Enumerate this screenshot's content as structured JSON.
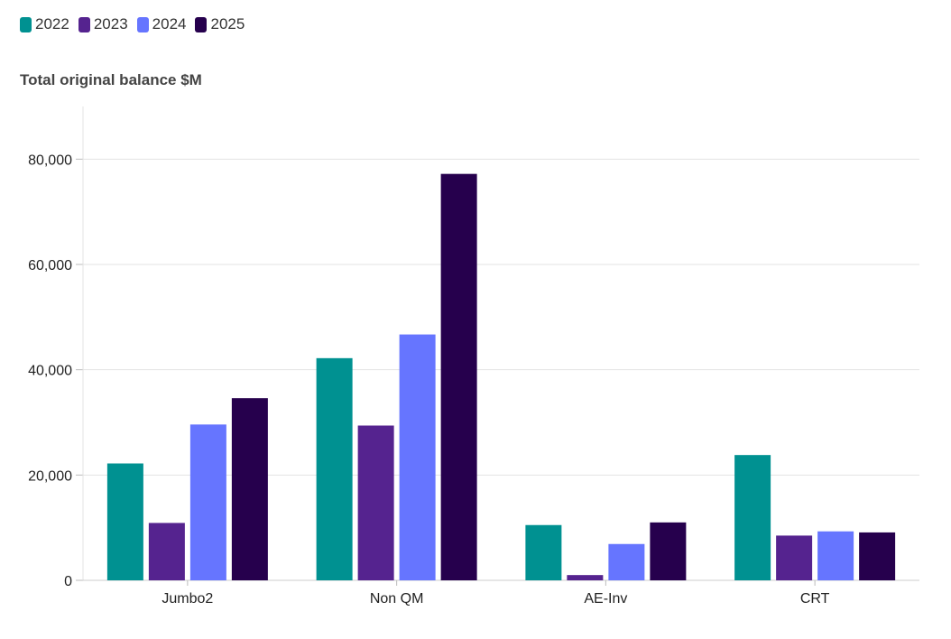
{
  "chart_data": {
    "type": "bar",
    "title": "",
    "xlabel": "",
    "ylabel": "Total original balance $M",
    "categories": [
      "Jumbo2",
      "Non QM",
      "AE-Inv",
      "CRT"
    ],
    "series": [
      {
        "name": "2022",
        "color": "#009191",
        "values": [
          22200,
          42200,
          10500,
          23800
        ]
      },
      {
        "name": "2023",
        "color": "#55238F",
        "values": [
          10900,
          29400,
          1000,
          8500
        ]
      },
      {
        "name": "2024",
        "color": "#6675FF",
        "values": [
          29600,
          46700,
          6900,
          9300
        ]
      },
      {
        "name": "2025",
        "color": "#26004D",
        "values": [
          34600,
          77200,
          11000,
          9100
        ]
      }
    ],
    "yticks": [
      "0",
      "20,000",
      "40,000",
      "60,000",
      "80,000"
    ],
    "ytick_values": [
      0,
      20000,
      40000,
      60000,
      80000
    ],
    "ylim": [
      0,
      90000
    ],
    "grid": true,
    "legend_position": "top-left"
  }
}
